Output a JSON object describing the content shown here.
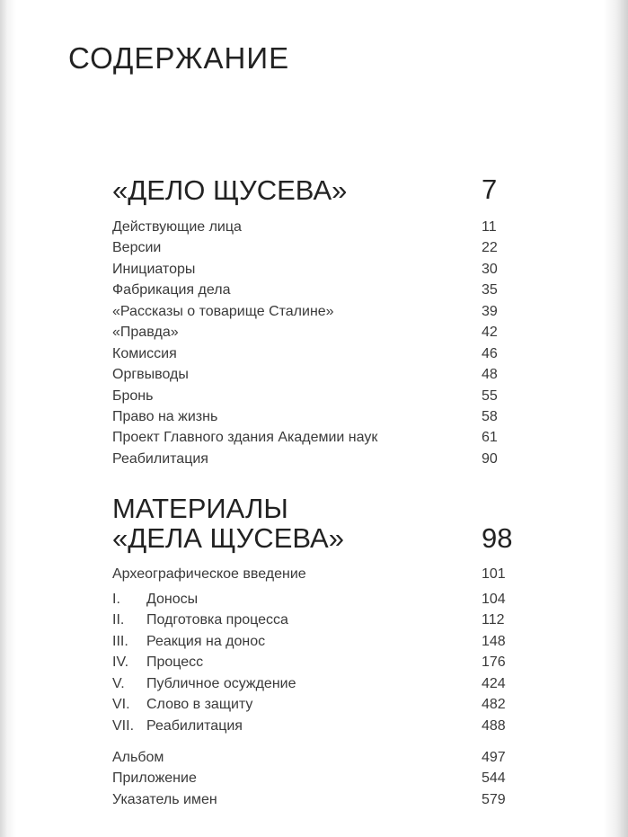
{
  "title": "СОДЕРЖАНИЕ",
  "section1": {
    "heading": "«ДЕЛО ЩУСЕВА»",
    "page": "7",
    "items": [
      {
        "label": "Действующие лица",
        "page": "11"
      },
      {
        "label": "Версии",
        "page": "22"
      },
      {
        "label": "Инициаторы",
        "page": "30"
      },
      {
        "label": "Фабрикация дела",
        "page": "35"
      },
      {
        "label": "«Рассказы о товарище Сталине»",
        "page": "39"
      },
      {
        "label": "«Правда»",
        "page": "42"
      },
      {
        "label": "Комиссия",
        "page": "46"
      },
      {
        "label": "Оргвыводы",
        "page": "48"
      },
      {
        "label": "Бронь",
        "page": "55"
      },
      {
        "label": "Право на жизнь",
        "page": "58"
      },
      {
        "label": "Проект Главного здания Академии наук",
        "page": "61"
      },
      {
        "label": "Реабилитация",
        "page": "90"
      }
    ]
  },
  "section2": {
    "heading_line1": "МАТЕРИАЛЫ",
    "heading_line2": "«ДЕЛА ЩУСЕВА»",
    "page": "98",
    "intro": {
      "label": "Археографическое введение",
      "page": "101"
    },
    "chapters": [
      {
        "numeral": "I.",
        "label": "Доносы",
        "page": "104"
      },
      {
        "numeral": "II.",
        "label": "Подготовка процесса",
        "page": "112"
      },
      {
        "numeral": "III.",
        "label": "Реакция на донос",
        "page": "148"
      },
      {
        "numeral": "IV.",
        "label": "Процесс",
        "page": "176"
      },
      {
        "numeral": "V.",
        "label": "Публичное осуждение",
        "page": "424"
      },
      {
        "numeral": "VI.",
        "label": "Слово в защиту",
        "page": "482"
      },
      {
        "numeral": "VII.",
        "label": "Реабилитация",
        "page": "488"
      }
    ],
    "appendix": [
      {
        "label": "Альбом",
        "page": "497"
      },
      {
        "label": "Приложение",
        "page": "544"
      },
      {
        "label": "Указатель имен",
        "page": "579"
      }
    ]
  }
}
